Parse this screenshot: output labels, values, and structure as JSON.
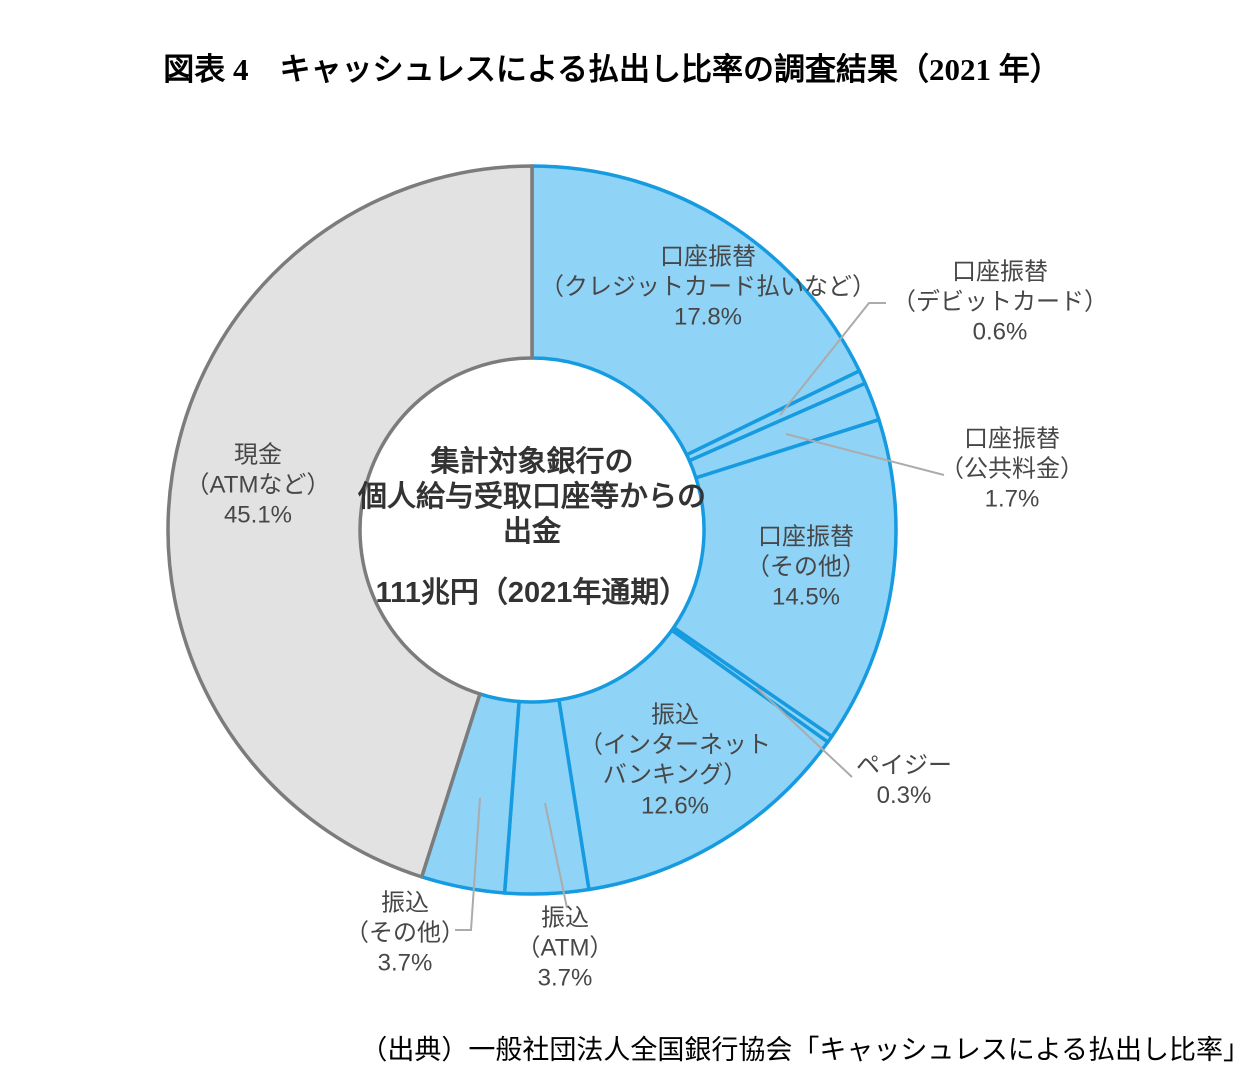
{
  "title": "図表 4　キャッシュレスによる払出し比率の調査結果（2021 年）",
  "source": "（出典）一般社団法人全国銀行協会「キャッシュレスによる払出し比率」",
  "chart_data": {
    "type": "pie",
    "subtype": "donut",
    "unit": "%",
    "start_angle": "12-oclock-clockwise",
    "center_label": {
      "lines": [
        "集計対象銀行の",
        "個人給与受取口座等からの",
        "出金"
      ],
      "total": "111兆円（2021年通期）"
    },
    "segments": [
      {
        "id": "kouza-credit",
        "label_lines": [
          "口座振替",
          "（クレジットカード払いなど）"
        ],
        "pct_label": "17.8%",
        "value": 17.8,
        "color_key": "cashless"
      },
      {
        "id": "kouza-debit",
        "label_lines": [
          "口座振替",
          "（デビットカード）"
        ],
        "pct_label": "0.6%",
        "value": 0.6,
        "color_key": "cashless"
      },
      {
        "id": "kouza-utility",
        "label_lines": [
          "口座振替",
          "（公共料金）"
        ],
        "pct_label": "1.7%",
        "value": 1.7,
        "color_key": "cashless"
      },
      {
        "id": "kouza-other",
        "label_lines": [
          "口座振替",
          "（その他）"
        ],
        "pct_label": "14.5%",
        "value": 14.5,
        "color_key": "cashless"
      },
      {
        "id": "payeasy",
        "label_lines": [
          "ペイジー"
        ],
        "pct_label": "0.3%",
        "value": 0.3,
        "color_key": "cashless"
      },
      {
        "id": "furikomi-net",
        "label_lines": [
          "振込",
          "（インターネット",
          "バンキング）"
        ],
        "pct_label": "12.6%",
        "value": 12.6,
        "color_key": "cashless"
      },
      {
        "id": "furikomi-atm",
        "label_lines": [
          "振込",
          "（ATM）"
        ],
        "pct_label": "3.7%",
        "value": 3.7,
        "color_key": "cashless"
      },
      {
        "id": "furikomi-other",
        "label_lines": [
          "振込",
          "（その他）"
        ],
        "pct_label": "3.7%",
        "value": 3.7,
        "color_key": "cashless"
      },
      {
        "id": "cash",
        "label_lines": [
          "現金",
          "（ATMなど）"
        ],
        "pct_label": "45.1%",
        "value": 45.1,
        "color_key": "cash"
      }
    ],
    "palette": {
      "cashless_fill": "#8FD3F7",
      "cashless_stroke": "#169BE0",
      "cash_fill": "#E2E2E2",
      "cash_stroke": "#7C7C7C",
      "leader_line": "#ABABAB"
    }
  }
}
